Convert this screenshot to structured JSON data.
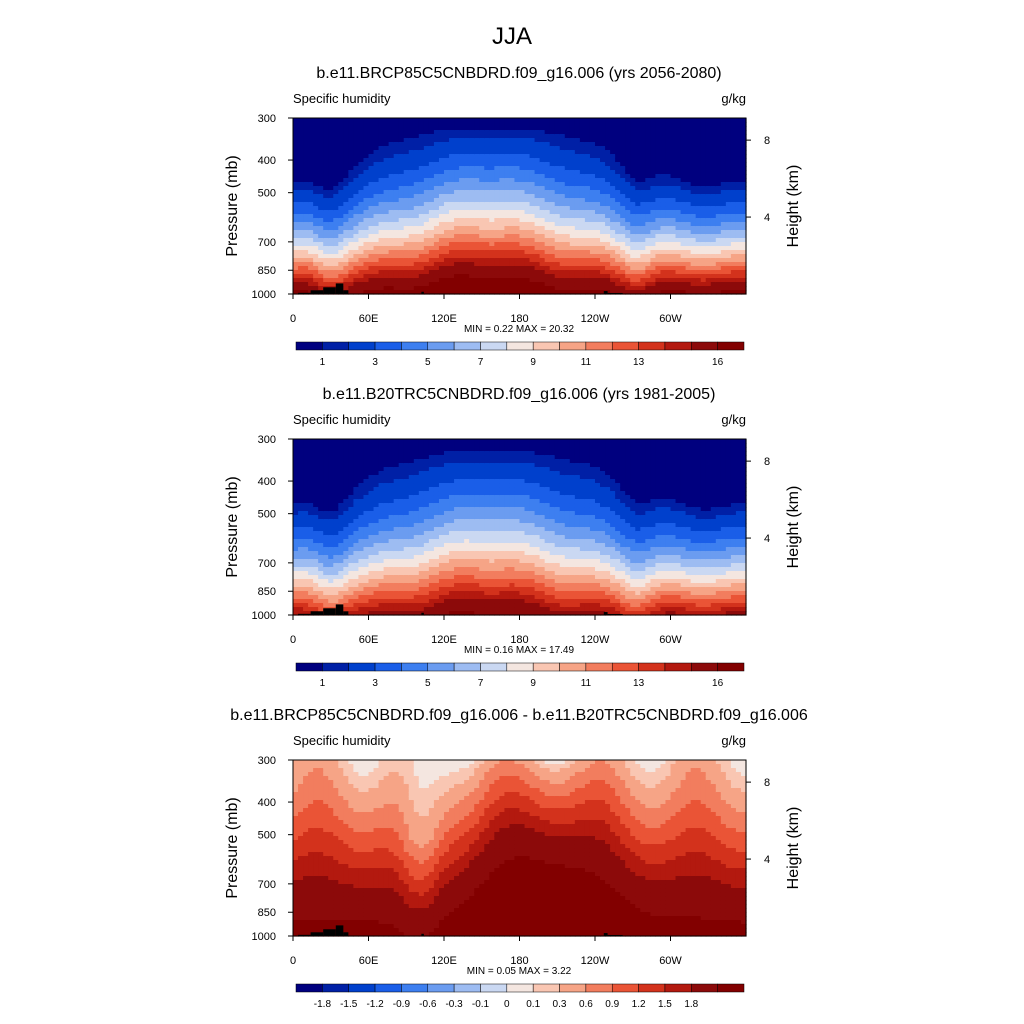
{
  "figure_title": "JJA",
  "colors": {
    "abs_scale": [
      "#00007f",
      "#0020a6",
      "#0040cc",
      "#1a5ee8",
      "#3d7ff0",
      "#6b9cf0",
      "#9dbcf2",
      "#cad8f2",
      "#f4e6e0",
      "#f9c6b2",
      "#f6a486",
      "#f27d5e",
      "#ea5436",
      "#d3321c",
      "#b3190f",
      "#8c0a0a",
      "#820000"
    ],
    "diff_scale": [
      "#00007f",
      "#0020a6",
      "#0040cc",
      "#1a5ee8",
      "#3d7ff0",
      "#6b9cf0",
      "#9dbcf2",
      "#cad8f2",
      "#f4e6e0",
      "#f9c6b2",
      "#f6a486",
      "#f27d5e",
      "#ea5436",
      "#d3321c",
      "#b3190f",
      "#8c0a0a",
      "#820000"
    ],
    "topography": "#000000"
  },
  "chart_data": [
    {
      "type": "heatmap",
      "title": "b.e11.BRCP85C5CNBDRD.f09_g16.006 (yrs 2056-2080)",
      "left_label": "Specific humidity",
      "right_label": "g/kg",
      "ylabel": "Pressure (mb)",
      "y2label": "Height (km)",
      "xticks": [
        "0",
        "60E",
        "120E",
        "180",
        "120W",
        "60W"
      ],
      "xtick_values": [
        0,
        60,
        120,
        180,
        240,
        300
      ],
      "xlim": [
        0,
        360
      ],
      "yticks": [
        "300",
        "400",
        "500",
        "700",
        "850",
        "1000"
      ],
      "ytick_values": [
        300,
        400,
        500,
        700,
        850,
        1000
      ],
      "ylim": [
        1000,
        300
      ],
      "y2ticks": [
        "8",
        "4"
      ],
      "y2tick_values": [
        8,
        4
      ],
      "stats": "MIN =   0.22  MAX =  20.32",
      "min": 0.22,
      "max": 20.32,
      "colorbar_labels": [
        "1",
        "3",
        "5",
        "7",
        "9",
        "11",
        "13",
        "16"
      ],
      "field": {
        "kind": "abs",
        "scale": 1.0
      }
    },
    {
      "type": "heatmap",
      "title": "b.e11.B20TRC5CNBDRD.f09_g16.006 (yrs 1981-2005)",
      "left_label": "Specific humidity",
      "right_label": "g/kg",
      "ylabel": "Pressure (mb)",
      "y2label": "Height (km)",
      "xticks": [
        "0",
        "60E",
        "120E",
        "180",
        "120W",
        "60W"
      ],
      "xtick_values": [
        0,
        60,
        120,
        180,
        240,
        300
      ],
      "xlim": [
        0,
        360
      ],
      "yticks": [
        "300",
        "400",
        "500",
        "700",
        "850",
        "1000"
      ],
      "ytick_values": [
        300,
        400,
        500,
        700,
        850,
        1000
      ],
      "ylim": [
        1000,
        300
      ],
      "y2ticks": [
        "8",
        "4"
      ],
      "y2tick_values": [
        8,
        4
      ],
      "stats": "MIN =   0.16  MAX =  17.49",
      "min": 0.16,
      "max": 17.49,
      "colorbar_labels": [
        "1",
        "3",
        "5",
        "7",
        "9",
        "11",
        "13",
        "16"
      ],
      "field": {
        "kind": "abs",
        "scale": 0.86
      }
    },
    {
      "type": "heatmap",
      "title": "b.e11.BRCP85C5CNBDRD.f09_g16.006 - b.e11.B20TRC5CNBDRD.f09_g16.006",
      "left_label": "Specific humidity",
      "right_label": "g/kg",
      "ylabel": "Pressure (mb)",
      "y2label": "Height (km)",
      "xticks": [
        "0",
        "60E",
        "120E",
        "180",
        "120W",
        "60W"
      ],
      "xtick_values": [
        0,
        60,
        120,
        180,
        240,
        300
      ],
      "xlim": [
        0,
        360
      ],
      "yticks": [
        "300",
        "400",
        "500",
        "700",
        "850",
        "1000"
      ],
      "ytick_values": [
        300,
        400,
        500,
        700,
        850,
        1000
      ],
      "ylim": [
        1000,
        300
      ],
      "y2ticks": [
        "8",
        "4"
      ],
      "y2tick_values": [
        8,
        4
      ],
      "stats": "MIN =   0.05  MAX =   3.22",
      "min": 0.05,
      "max": 3.22,
      "colorbar_labels": [
        "-1.8",
        "-1.5",
        "-1.2",
        "-0.9",
        "-0.6",
        "-0.3",
        "-0.1",
        "0",
        "0.1",
        "0.3",
        "0.6",
        "0.9",
        "1.2",
        "1.5",
        "1.8"
      ],
      "field": {
        "kind": "diff",
        "scale": 1.0
      }
    }
  ]
}
